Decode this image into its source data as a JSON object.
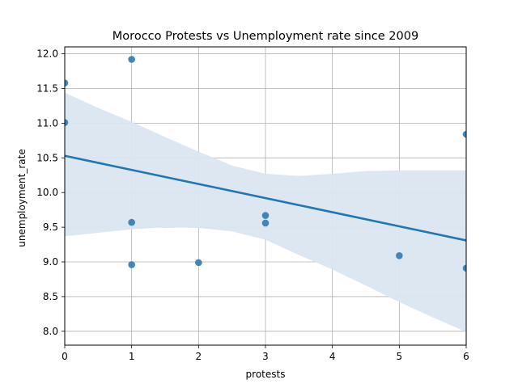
{
  "chart_data": {
    "type": "scatter",
    "title": "Morocco Protests vs Unemployment rate since 2009",
    "xlabel": "protests",
    "ylabel": "unemployment_rate",
    "xlim": [
      0,
      6
    ],
    "ylim": [
      7.8,
      12.1
    ],
    "x_ticks": [
      "0",
      "1",
      "2",
      "3",
      "4",
      "5",
      "6"
    ],
    "y_ticks": [
      "8.0",
      "8.5",
      "9.0",
      "9.5",
      "10.0",
      "10.5",
      "11.0",
      "11.5",
      "12.0"
    ],
    "grid": true,
    "points": [
      {
        "x": 0,
        "y": 11.58
      },
      {
        "x": 0,
        "y": 11.01
      },
      {
        "x": 1,
        "y": 11.92
      },
      {
        "x": 1,
        "y": 9.57
      },
      {
        "x": 1,
        "y": 8.96
      },
      {
        "x": 2,
        "y": 8.99
      },
      {
        "x": 3,
        "y": 9.67
      },
      {
        "x": 3,
        "y": 9.56
      },
      {
        "x": 5,
        "y": 9.09
      },
      {
        "x": 6,
        "y": 10.84
      },
      {
        "x": 6,
        "y": 8.91
      }
    ],
    "regression_line": {
      "x": [
        0,
        6
      ],
      "y": [
        10.53,
        9.31
      ]
    },
    "confidence_band": {
      "x": [
        0,
        0.5,
        1,
        1.5,
        2,
        2.5,
        3,
        3.5,
        4,
        4.5,
        5,
        5.5,
        6
      ],
      "upper": [
        11.44,
        11.22,
        11.02,
        10.8,
        10.59,
        10.39,
        10.27,
        10.24,
        10.27,
        10.31,
        10.32,
        10.32,
        10.32
      ],
      "lower": [
        9.37,
        9.42,
        9.47,
        9.5,
        9.49,
        9.44,
        9.32,
        9.1,
        8.89,
        8.66,
        8.42,
        8.2,
        7.99
      ]
    },
    "colors": {
      "points": "#3a7fb4",
      "line": "#1f77b4",
      "band": "#dbe6f1",
      "grid": "#b0b0b0"
    }
  }
}
